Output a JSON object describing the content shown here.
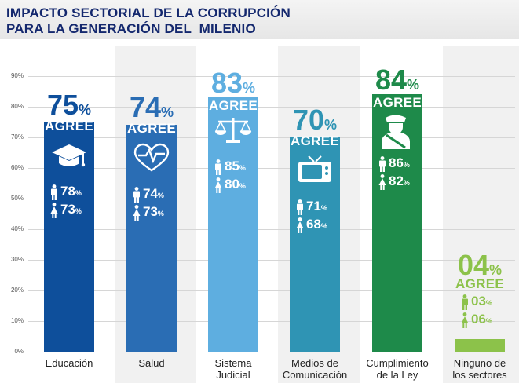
{
  "title": {
    "line1": "IMPACTO SECTORIAL DE LA CORRUPCIÓN",
    "line2": "PARA LA GENERACIÓN DEL  MILENIO"
  },
  "colors": {
    "title": "#14286e",
    "grid": "#d6d6d6"
  },
  "chart_data": {
    "type": "bar",
    "title": "IMPACTO SECTORIAL DE LA CORRUPCIÓN PARA LA GENERACIÓN DEL  MILENIO",
    "ylim": [
      0,
      90
    ],
    "yticks": [
      "0%",
      "10%",
      "20%",
      "30%",
      "40%",
      "50%",
      "60%",
      "70%",
      "80%",
      "90%"
    ],
    "grid": true,
    "agree_label": "AGREE",
    "categories": [
      {
        "label": "Educación",
        "value": 75,
        "male": 78,
        "female": 73,
        "color": "#0e4f9b",
        "pct_color": "#0e4f9b",
        "icon": "graduation-cap-icon",
        "big": "75",
        "m": "78",
        "f": "73"
      },
      {
        "label": "Salud",
        "value": 74,
        "male": 74,
        "female": 73,
        "color": "#2a6db4",
        "pct_color": "#2a6db4",
        "icon": "heartbeat-icon",
        "big": "74",
        "m": "74",
        "f": "73"
      },
      {
        "label": "Sistema Judicial",
        "value": 83,
        "male": 85,
        "female": 80,
        "color": "#5eaee0",
        "pct_color": "#5eaee0",
        "icon": "scales-icon",
        "big": "83",
        "m": "85",
        "f": "80"
      },
      {
        "label": "Medios de Comunicación",
        "value": 70,
        "male": 71,
        "female": 68,
        "color": "#2f94b4",
        "pct_color": "#2f94b4",
        "icon": "tv-icon",
        "big": "70",
        "m": "71",
        "f": "68"
      },
      {
        "label": "Cumplimiento de la Ley",
        "value": 84,
        "male": 86,
        "female": 82,
        "color": "#1e8a4a",
        "pct_color": "#1e8a4a",
        "icon": "police-officer-icon",
        "big": "84",
        "m": "86",
        "f": "82"
      },
      {
        "label": "Ninguno de los sectores",
        "value": 4,
        "male": 3,
        "female": 6,
        "color": "#8cc24a",
        "pct_color": "#8cc24a",
        "icon": "",
        "big": "04",
        "m": "03",
        "f": "06"
      }
    ],
    "categories_display": [
      {
        "line1": "Educación",
        "line2": ""
      },
      {
        "line1": "Salud",
        "line2": ""
      },
      {
        "line1": "Sistema",
        "line2": "Judicial"
      },
      {
        "line1": "Medios de",
        "line2": "Comunicación"
      },
      {
        "line1": "Cumplimiento",
        "line2": "de la Ley"
      },
      {
        "line1": "Ninguno de",
        "line2": "los sectores"
      }
    ]
  }
}
